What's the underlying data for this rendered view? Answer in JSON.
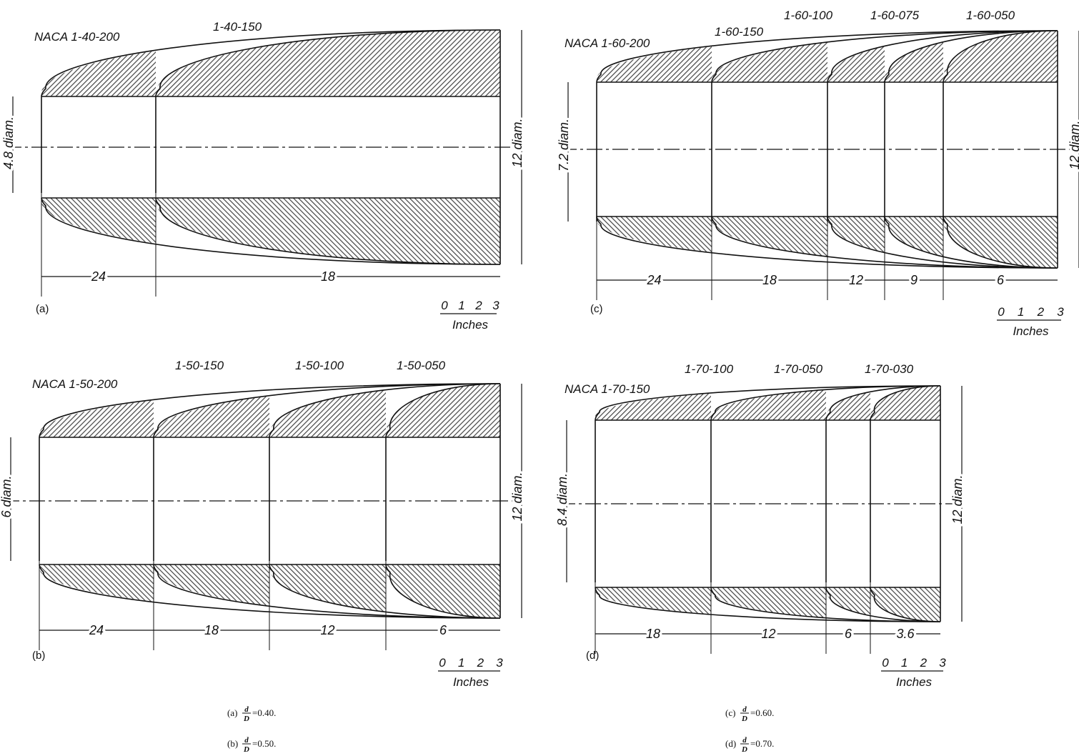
{
  "panels": [
    {
      "letter": "(a)",
      "profiles": [
        "NACA 1-40-200",
        "1-40-150"
      ],
      "inlet_diameter": "4.8 diam.",
      "max_diameter": "12 diam.",
      "lengths": [
        "24",
        "18"
      ],
      "scale": [
        "0",
        "1",
        "2",
        "3"
      ],
      "scale_unit": "Inches"
    },
    {
      "letter": "(b)",
      "profiles": [
        "NACA 1-50-200",
        "1-50-150",
        "1-50-100",
        "1-50-050"
      ],
      "inlet_diameter": "6 diam.",
      "max_diameter": "12 diam.",
      "lengths": [
        "24",
        "18",
        "12",
        "6"
      ],
      "scale": [
        "0",
        "1",
        "2",
        "3"
      ],
      "scale_unit": "Inches"
    },
    {
      "letter": "(c)",
      "profiles": [
        "NACA 1-60-200",
        "1-60-150",
        "1-60-100",
        "1-60-075",
        "1-60-050"
      ],
      "inlet_diameter": "7.2 diam.",
      "max_diameter": "12 diam.",
      "lengths": [
        "24",
        "18",
        "12",
        "9",
        "6"
      ],
      "scale": [
        "0",
        "1",
        "2",
        "3"
      ],
      "scale_unit": "Inches"
    },
    {
      "letter": "(d)",
      "profiles": [
        "NACA 1-70-150",
        "1-70-100",
        "1-70-050",
        "1-70-030"
      ],
      "inlet_diameter": "8.4 diam.",
      "max_diameter": "12 diam.",
      "lengths": [
        "18",
        "12",
        "6",
        "3.6"
      ],
      "scale": [
        "0",
        "1",
        "2",
        "3"
      ],
      "scale_unit": "Inches"
    }
  ],
  "captions": [
    {
      "prefix": "(a)",
      "numerator": "d",
      "denominator": "D",
      "suffix": "=0.40."
    },
    {
      "prefix": "(b)",
      "numerator": "d",
      "denominator": "D",
      "suffix": "=0.50."
    },
    {
      "prefix": "(c)",
      "numerator": "d",
      "denominator": "D",
      "suffix": "=0.60."
    },
    {
      "prefix": "(d)",
      "numerator": "d",
      "denominator": "D",
      "suffix": "=0.70."
    }
  ]
}
